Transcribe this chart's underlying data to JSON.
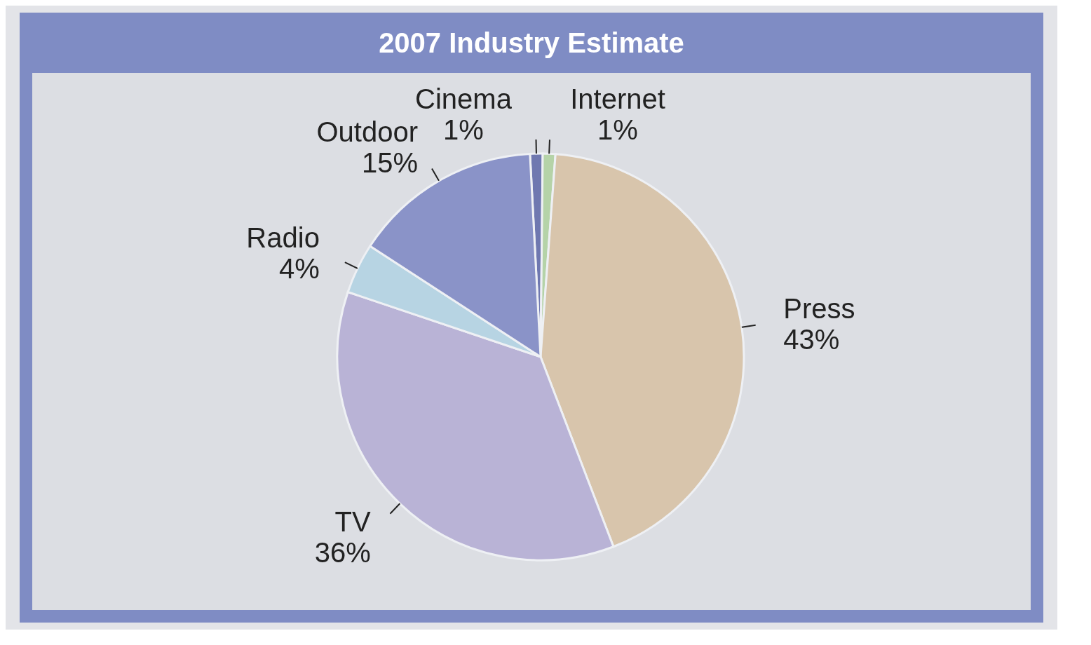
{
  "chart_data": {
    "type": "pie",
    "title": "2007 Industry Estimate",
    "categories": [
      "Cinema",
      "Internet",
      "Press",
      "TV",
      "Radio",
      "Outdoor"
    ],
    "values": [
      1,
      1,
      43,
      36,
      4,
      15
    ],
    "value_labels": [
      "1%",
      "1%",
      "43%",
      "36%",
      "4%",
      "15%"
    ],
    "colors": [
      "#6f78b0",
      "#b5d3a8",
      "#d8c5ac",
      "#b9b3d6",
      "#b7d4e3",
      "#8a93c8"
    ]
  }
}
